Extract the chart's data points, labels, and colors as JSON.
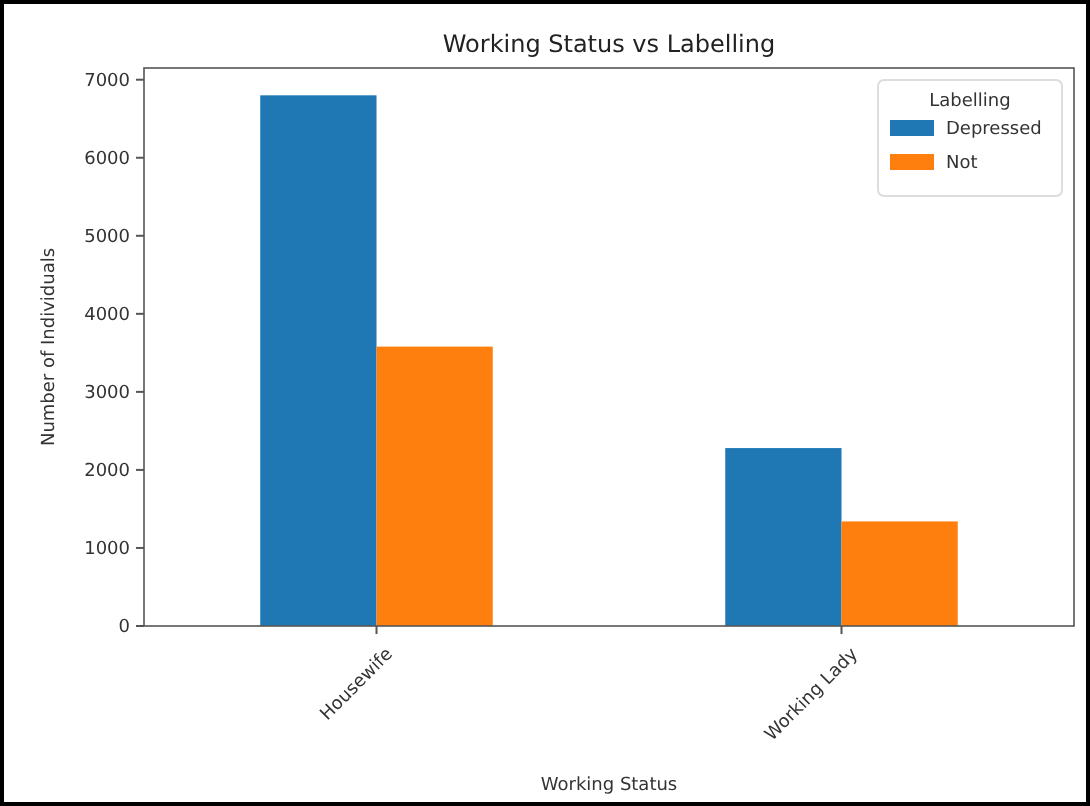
{
  "chart_data": {
    "type": "bar",
    "title": "Working Status vs Labelling",
    "xlabel": "Working Status",
    "ylabel": "Number of Individuals",
    "legend_title": "Labelling",
    "categories": [
      "Housewife",
      "Working Lady"
    ],
    "series": [
      {
        "name": "Depressed",
        "color": "#1f77b4",
        "values": [
          6800,
          2280
        ]
      },
      {
        "name": "Not",
        "color": "#ff7f0e",
        "values": [
          3580,
          1340
        ]
      }
    ],
    "ylim": [
      0,
      7150
    ],
    "yticks": [
      0,
      1000,
      2000,
      3000,
      4000,
      5000,
      6000,
      7000
    ],
    "grid": false,
    "legend": "top right"
  }
}
